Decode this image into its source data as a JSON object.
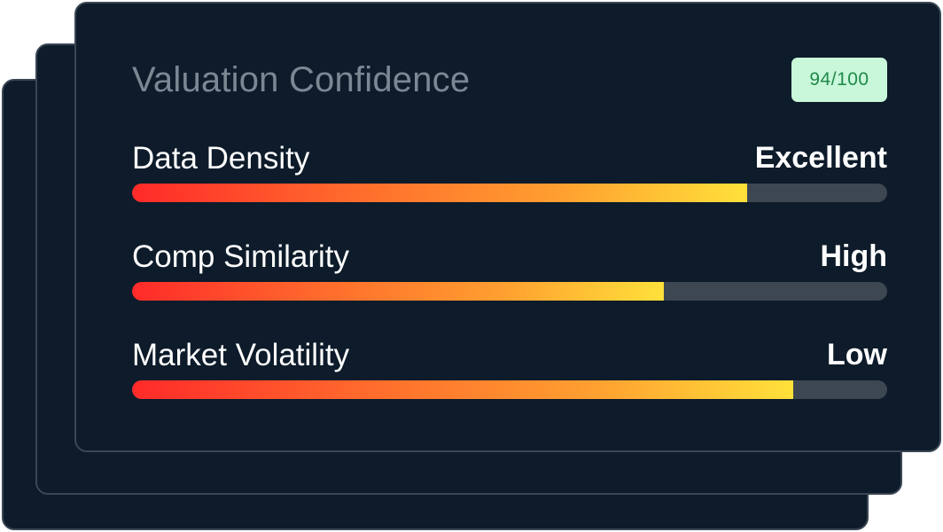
{
  "panel": {
    "title": "Valuation Confidence",
    "score": "94/100",
    "colors": {
      "card_bg": "#0d1b2a",
      "card_border": "#3b4654",
      "badge_bg": "#c9f7d9",
      "badge_text": "#1f8a4a",
      "bar_track": "#3d4752",
      "bar_gradient_start": "#ff2a2a",
      "bar_gradient_end": "#ffe13a"
    }
  },
  "metrics": [
    {
      "label": "Data Density",
      "rating": "Excellent",
      "level_pct": 81.5
    },
    {
      "label": "Comp Similarity",
      "rating": "High",
      "level_pct": 70.4
    },
    {
      "label": "Market Volatility",
      "rating": "Low",
      "level_pct": 87.6
    }
  ]
}
